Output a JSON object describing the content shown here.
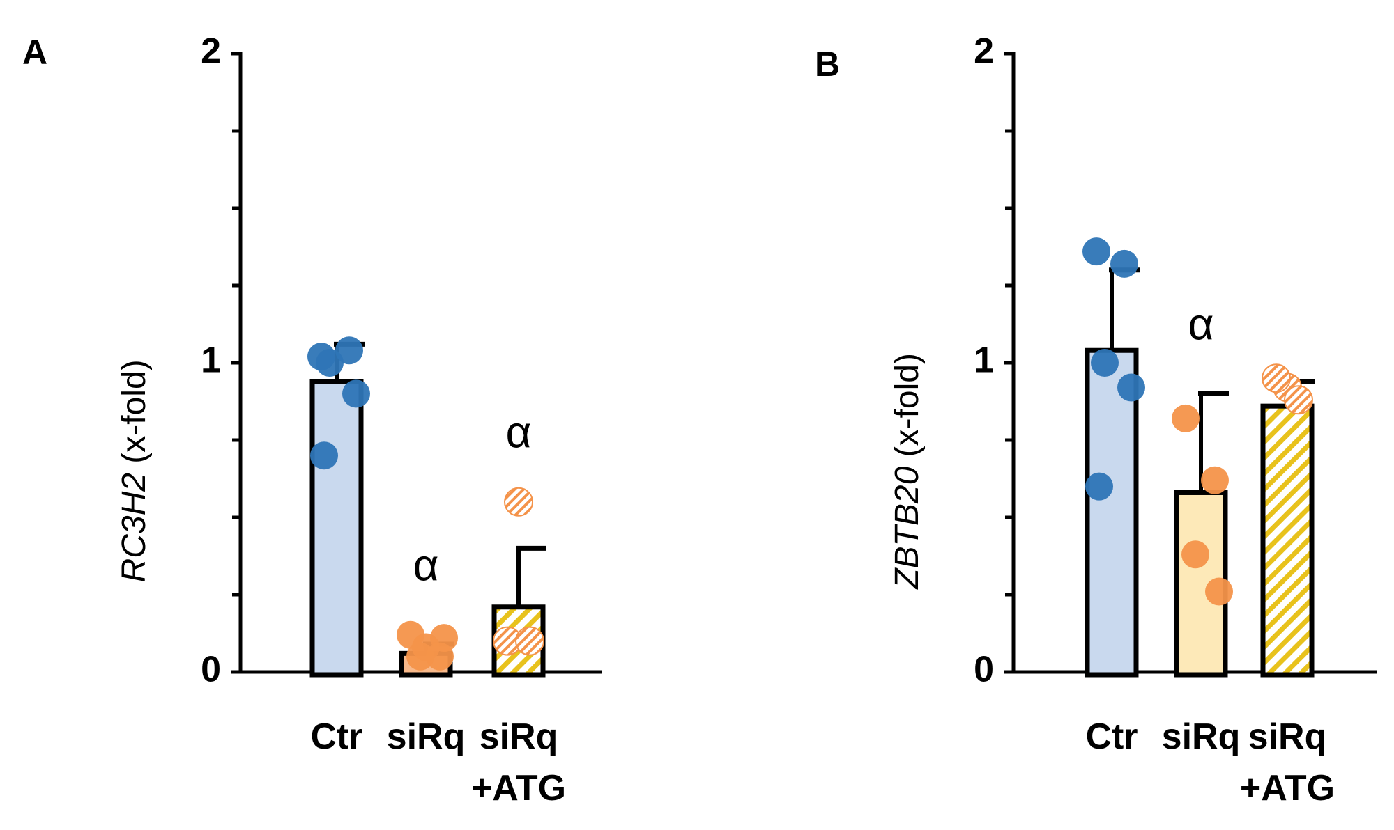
{
  "chart_data": [
    {
      "type": "bar",
      "panel": "A",
      "ylabel": {
        "gene": "RC3H2",
        "unit": "(x-fold)"
      },
      "categories": [
        "Ctr",
        "siRq",
        "siRq\n+ATG"
      ],
      "values": [
        0.94,
        0.06,
        0.21
      ],
      "errors": [
        0.12,
        0.03,
        0.19
      ],
      "points": [
        [
          1.02,
          1.04,
          1.0,
          0.9,
          0.7
        ],
        [
          0.12,
          0.05,
          0.05,
          0.11,
          0.08
        ],
        [
          0.55,
          0.1,
          0.1
        ]
      ],
      "colors": [
        "#c9d9ee",
        "#f8b98a",
        "hatch-yellow"
      ],
      "point_colors": [
        "#2e75b6",
        "#f4934a",
        "hatch-orange"
      ],
      "annotations": [
        {
          "label": "α",
          "category": 1
        },
        {
          "label": "α",
          "category": 2
        }
      ],
      "ylim": [
        0,
        2
      ],
      "yticks": [
        0,
        1,
        2
      ],
      "minor_yticks": [
        0.25,
        0.5,
        0.75,
        1.25,
        1.5,
        1.75
      ]
    },
    {
      "type": "bar",
      "panel": "B",
      "ylabel": {
        "gene": "ZBTB20",
        "unit": "(x-fold)"
      },
      "categories": [
        "Ctr",
        "siRq",
        "siRq\n+ATG"
      ],
      "values": [
        1.04,
        0.58,
        0.86
      ],
      "errors": [
        0.26,
        0.32,
        0.08
      ],
      "points": [
        [
          1.36,
          1.32,
          1.0,
          0.92,
          0.6
        ],
        [
          0.82,
          0.62,
          0.38,
          0.26
        ],
        [
          0.92,
          0.95,
          0.88
        ]
      ],
      "colors": [
        "#c9d9ee",
        "#fde9b8",
        "hatch-yellow"
      ],
      "point_colors": [
        "#2e75b6",
        "#f4934a",
        "hatch-orange"
      ],
      "annotations": [
        {
          "label": "α",
          "category": 1
        }
      ],
      "ylim": [
        0,
        2
      ],
      "yticks": [
        0,
        1,
        2
      ],
      "minor_yticks": [
        0.25,
        0.5,
        0.75,
        1.25,
        1.5,
        1.75
      ]
    }
  ]
}
